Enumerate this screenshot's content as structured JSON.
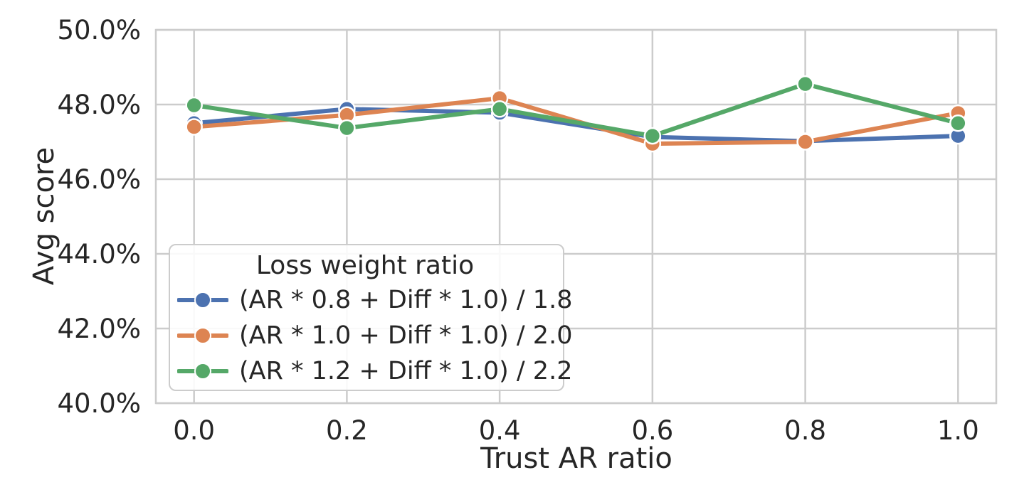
{
  "chart_data": {
    "type": "line",
    "title": "",
    "xlabel": "Trust AR ratio",
    "ylabel": "Avg score",
    "x": [
      0.0,
      0.2,
      0.4,
      0.6,
      0.8,
      1.0
    ],
    "xlim": [
      -0.05,
      1.05
    ],
    "ylim": [
      40.0,
      50.0
    ],
    "x_tick_labels": [
      "0.0",
      "0.2",
      "0.4",
      "0.6",
      "0.8",
      "1.0"
    ],
    "x_tick_values": [
      0.0,
      0.2,
      0.4,
      0.6,
      0.8,
      1.0
    ],
    "y_tick_labels": [
      "50.0%",
      "48.0%",
      "46.0%",
      "44.0%",
      "42.0%",
      "40.0%"
    ],
    "y_tick_values": [
      50.0,
      48.0,
      46.0,
      44.0,
      42.0,
      40.0
    ],
    "grid": true,
    "marker": "circle",
    "legend": {
      "title": "Loss weight ratio",
      "position": "lower-left"
    },
    "series": [
      {
        "name": "(AR * 0.8 + Diff * 1.0) / 1.8",
        "color": "#4C72B0",
        "values": [
          47.5,
          47.88,
          47.78,
          47.13,
          47.02,
          47.16
        ]
      },
      {
        "name": "(AR * 1.0 + Diff * 1.0) / 2.0",
        "color": "#DD8452",
        "values": [
          47.4,
          47.72,
          48.17,
          46.95,
          47.0,
          47.77
        ]
      },
      {
        "name": "(AR * 1.2 + Diff * 1.0) / 2.2",
        "color": "#55A868",
        "values": [
          47.98,
          47.37,
          47.88,
          47.16,
          48.55,
          47.5
        ]
      }
    ],
    "colors": {
      "grid": "#cccccc",
      "spine": "#cccccc",
      "text": "#262626",
      "background": "#ffffff"
    }
  }
}
